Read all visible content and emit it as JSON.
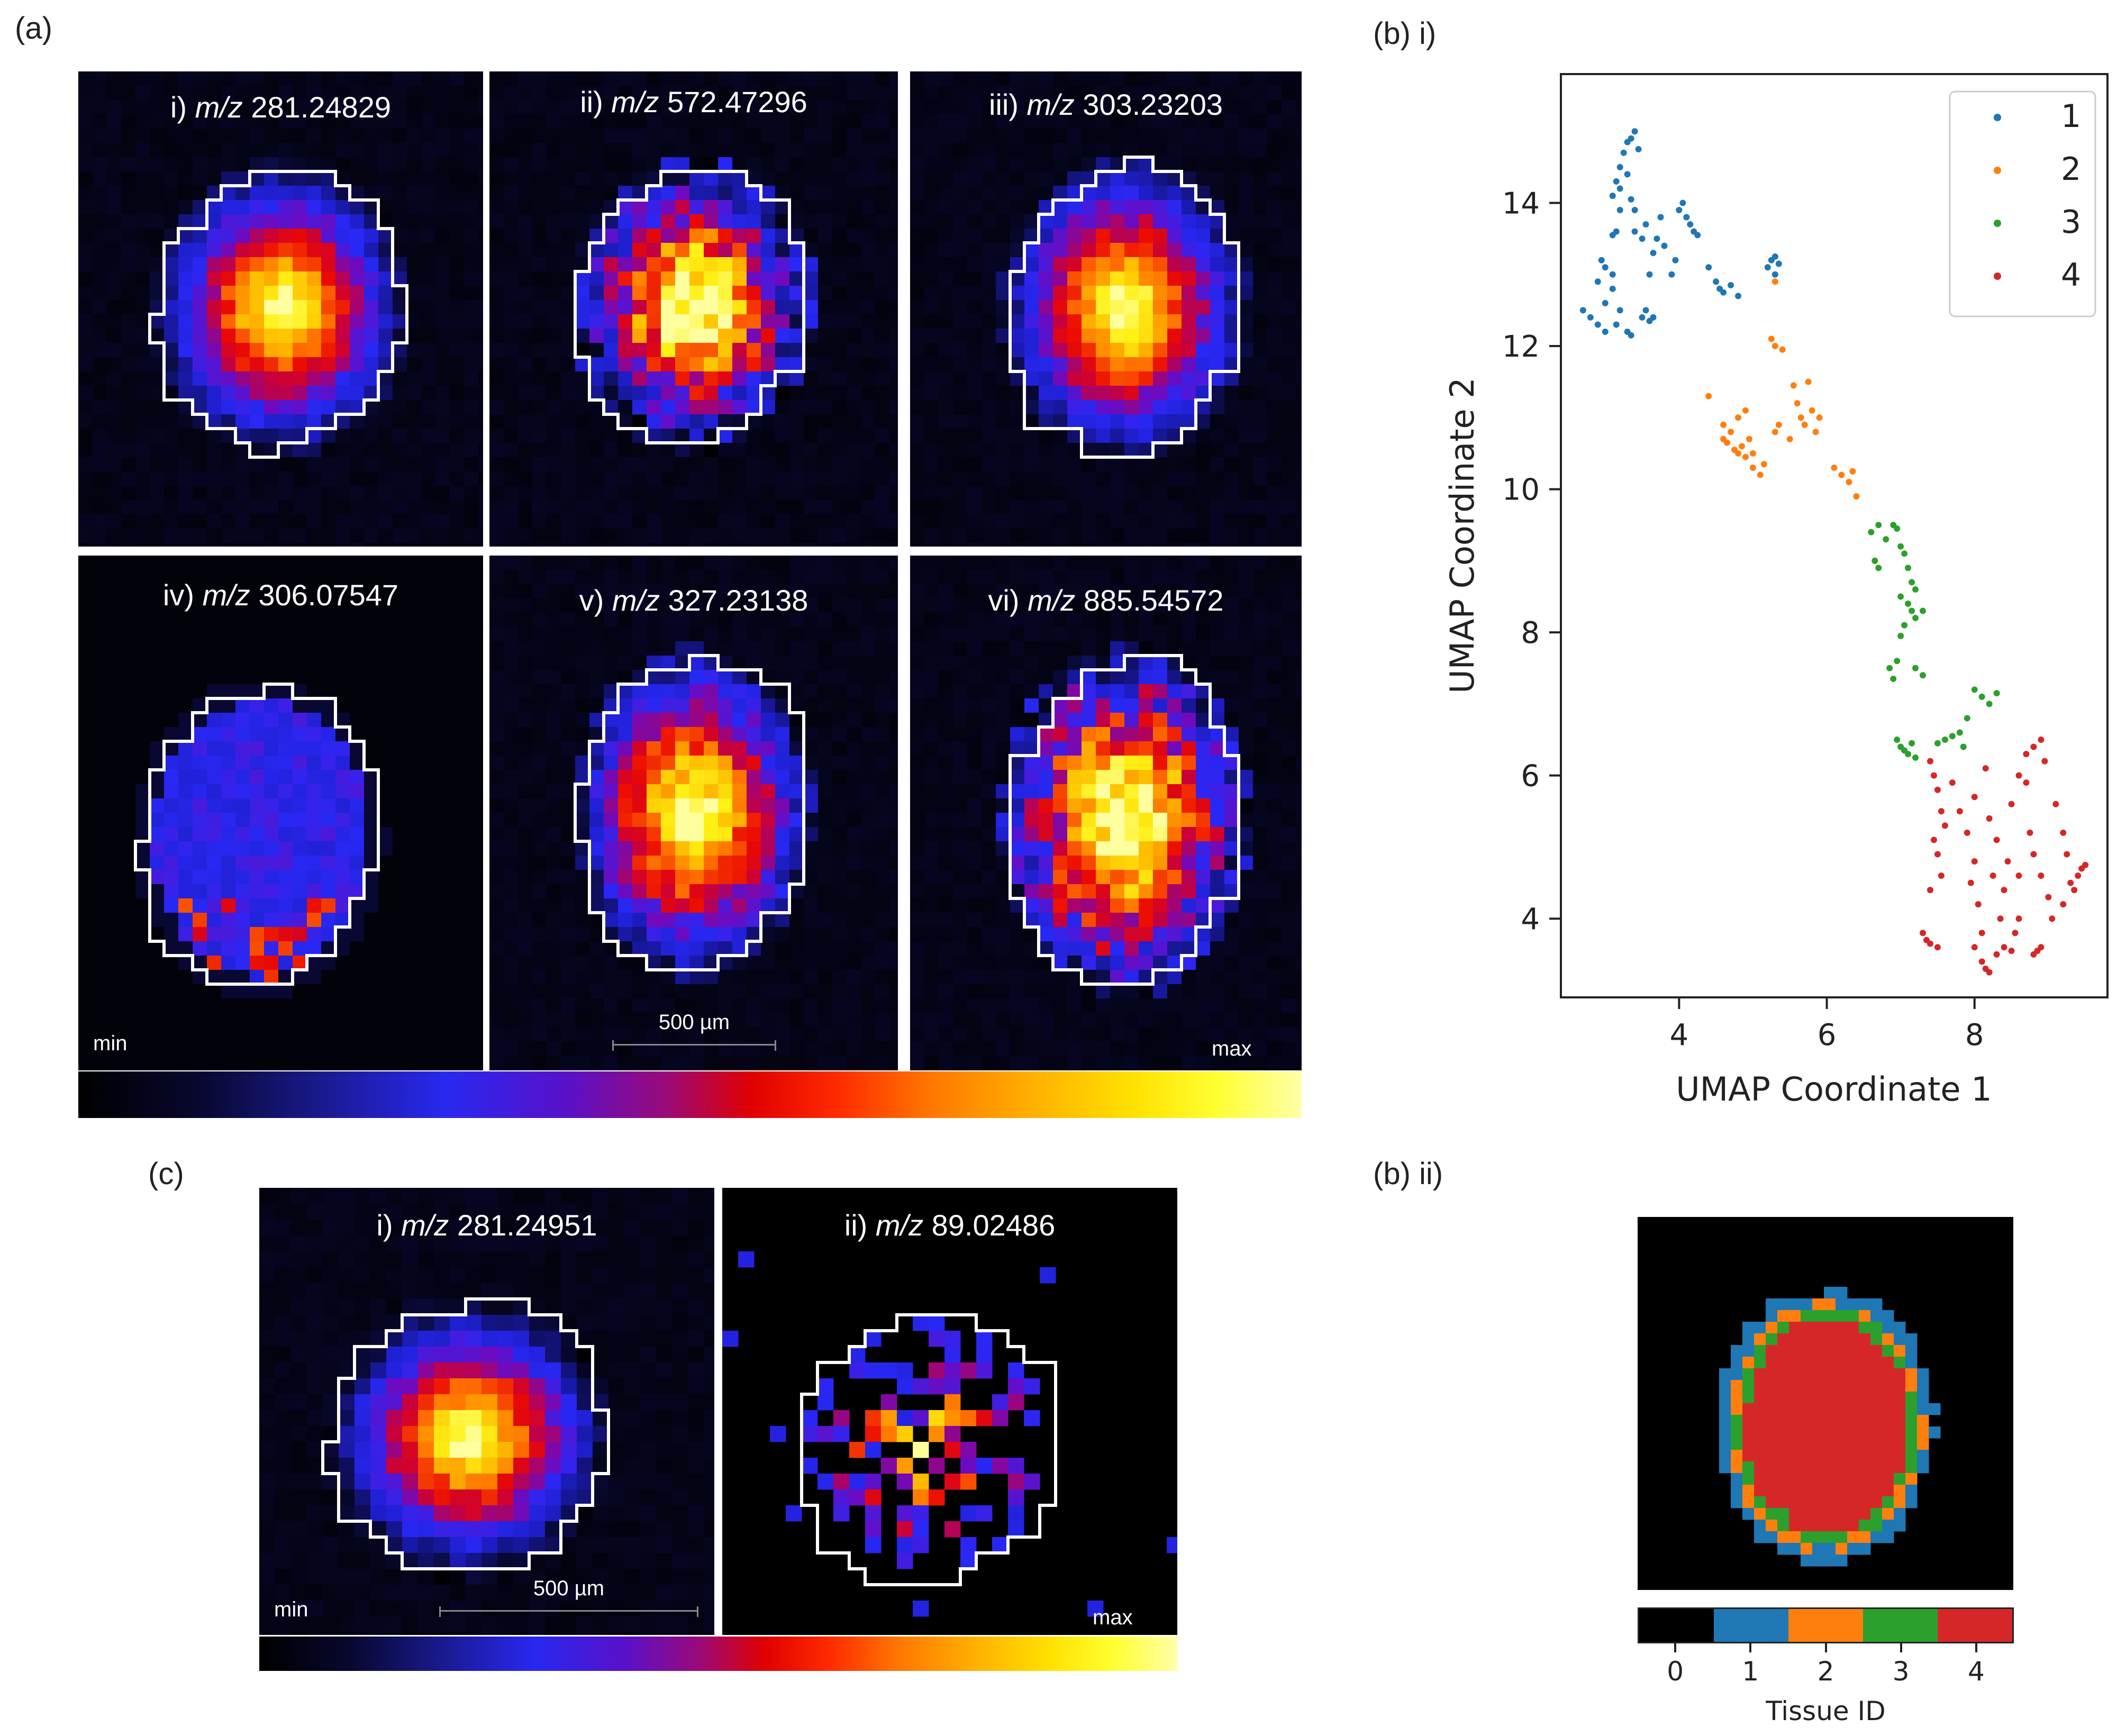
{
  "labels": {
    "a": "(a)",
    "b_i": "(b) i)",
    "b_ii": "(b) ii)",
    "c": "(c)"
  },
  "panel_a": {
    "tiles": [
      {
        "prefix": "i)",
        "mz": "m/z",
        "value": "281.24829"
      },
      {
        "prefix": "ii)",
        "mz": "m/z",
        "value": "572.47296"
      },
      {
        "prefix": "iii)",
        "mz": "m/z",
        "value": "303.23203"
      },
      {
        "prefix": "iv)",
        "mz": "m/z",
        "value": "306.07547"
      },
      {
        "prefix": "v)",
        "mz": "m/z",
        "value": "327.23138"
      },
      {
        "prefix": "vi)",
        "mz": "m/z",
        "value": "885.54572"
      }
    ],
    "min_label": "min",
    "max_label": "max",
    "scale_label": "500 µm"
  },
  "panel_c": {
    "tiles": [
      {
        "prefix": "i)",
        "mz": "m/z",
        "value": "281.24951"
      },
      {
        "prefix": "ii)",
        "mz": "m/z",
        "value": "89.02486"
      }
    ],
    "min_label": "min",
    "max_label": "max",
    "scale_label": "500 µm"
  },
  "chart_data": {
    "type": "scatter",
    "xlabel": "UMAP Coordinate 1",
    "ylabel": "UMAP Coordinate 2",
    "xlim": [
      2.4,
      9.8
    ],
    "ylim": [
      2.9,
      15.8
    ],
    "xticks": [
      4,
      6,
      8
    ],
    "yticks": [
      4,
      6,
      8,
      10,
      12,
      14
    ],
    "grid": false,
    "legend": "top-right",
    "series": [
      {
        "name": "1",
        "color": "#1f77b4",
        "points": [
          [
            2.7,
            12.5
          ],
          [
            2.8,
            12.4
          ],
          [
            2.9,
            12.3
          ],
          [
            3.0,
            12.6
          ],
          [
            2.9,
            12.9
          ],
          [
            3.0,
            13.1
          ],
          [
            2.95,
            13.2
          ],
          [
            3.1,
            12.8
          ],
          [
            3.0,
            12.2
          ],
          [
            3.15,
            12.3
          ],
          [
            3.2,
            12.5
          ],
          [
            3.3,
            12.2
          ],
          [
            3.35,
            12.15
          ],
          [
            3.1,
            13.0
          ],
          [
            3.15,
            13.6
          ],
          [
            3.2,
            13.9
          ],
          [
            3.1,
            14.1
          ],
          [
            3.15,
            14.3
          ],
          [
            3.2,
            14.5
          ],
          [
            3.25,
            14.7
          ],
          [
            3.3,
            14.85
          ],
          [
            3.35,
            14.9
          ],
          [
            3.4,
            15.0
          ],
          [
            3.45,
            14.75
          ],
          [
            3.2,
            14.2
          ],
          [
            3.3,
            14.4
          ],
          [
            3.35,
            14.05
          ],
          [
            3.4,
            13.9
          ],
          [
            3.5,
            12.4
          ],
          [
            3.55,
            12.5
          ],
          [
            3.6,
            12.35
          ],
          [
            3.65,
            12.4
          ],
          [
            3.6,
            13.0
          ],
          [
            3.65,
            13.3
          ],
          [
            3.7,
            13.5
          ],
          [
            3.75,
            13.8
          ],
          [
            3.8,
            13.4
          ],
          [
            3.5,
            13.5
          ],
          [
            3.9,
            13.0
          ],
          [
            3.95,
            13.2
          ],
          [
            4.0,
            13.9
          ],
          [
            4.05,
            14.0
          ],
          [
            4.1,
            13.8
          ],
          [
            4.15,
            13.7
          ],
          [
            4.2,
            13.6
          ],
          [
            4.25,
            13.55
          ],
          [
            4.4,
            13.1
          ],
          [
            4.5,
            12.9
          ],
          [
            4.55,
            12.8
          ],
          [
            4.6,
            12.75
          ],
          [
            4.7,
            12.85
          ],
          [
            4.8,
            12.7
          ],
          [
            5.2,
            13.1
          ],
          [
            5.25,
            13.2
          ],
          [
            5.3,
            13.25
          ],
          [
            5.35,
            13.15
          ],
          [
            5.3,
            13.0
          ],
          [
            3.1,
            13.55
          ],
          [
            3.4,
            13.6
          ],
          [
            3.55,
            13.7
          ]
        ]
      },
      {
        "name": "2",
        "color": "#ff7f0e",
        "points": [
          [
            5.3,
            12.9
          ],
          [
            5.25,
            12.1
          ],
          [
            5.3,
            12.0
          ],
          [
            5.4,
            11.95
          ],
          [
            4.4,
            11.3
          ],
          [
            4.6,
            10.9
          ],
          [
            4.7,
            10.8
          ],
          [
            4.65,
            10.65
          ],
          [
            4.75,
            10.55
          ],
          [
            4.8,
            10.5
          ],
          [
            4.85,
            10.6
          ],
          [
            4.9,
            10.45
          ],
          [
            4.95,
            10.7
          ],
          [
            5.0,
            10.5
          ],
          [
            4.8,
            11.0
          ],
          [
            4.9,
            11.1
          ],
          [
            5.0,
            10.3
          ],
          [
            5.1,
            10.2
          ],
          [
            5.15,
            10.35
          ],
          [
            5.3,
            10.8
          ],
          [
            5.35,
            10.9
          ],
          [
            5.5,
            10.7
          ],
          [
            5.6,
            11.2
          ],
          [
            5.65,
            11.0
          ],
          [
            5.7,
            10.9
          ],
          [
            5.75,
            11.5
          ],
          [
            5.8,
            11.1
          ],
          [
            5.85,
            10.8
          ],
          [
            5.9,
            11.0
          ],
          [
            6.1,
            10.3
          ],
          [
            6.2,
            10.2
          ],
          [
            6.3,
            10.1
          ],
          [
            6.35,
            10.25
          ],
          [
            6.4,
            9.9
          ],
          [
            5.55,
            11.45
          ],
          [
            4.6,
            10.7
          ]
        ]
      },
      {
        "name": "3",
        "color": "#2ca02c",
        "points": [
          [
            6.6,
            9.4
          ],
          [
            6.7,
            9.5
          ],
          [
            6.8,
            9.3
          ],
          [
            6.9,
            9.5
          ],
          [
            6.95,
            9.45
          ],
          [
            7.0,
            9.2
          ],
          [
            7.05,
            9.1
          ],
          [
            6.65,
            9.0
          ],
          [
            6.7,
            8.9
          ],
          [
            7.1,
            8.9
          ],
          [
            7.15,
            8.7
          ],
          [
            7.2,
            8.6
          ],
          [
            7.1,
            8.4
          ],
          [
            7.0,
            8.5
          ],
          [
            7.15,
            8.3
          ],
          [
            7.2,
            8.2
          ],
          [
            7.3,
            8.3
          ],
          [
            7.05,
            8.1
          ],
          [
            7.0,
            7.95
          ],
          [
            6.95,
            7.6
          ],
          [
            6.85,
            7.5
          ],
          [
            6.9,
            7.35
          ],
          [
            7.2,
            7.5
          ],
          [
            7.3,
            7.4
          ],
          [
            6.95,
            6.5
          ],
          [
            7.0,
            6.4
          ],
          [
            7.05,
            6.35
          ],
          [
            7.1,
            6.3
          ],
          [
            7.2,
            6.25
          ],
          [
            7.15,
            6.45
          ],
          [
            7.5,
            6.45
          ],
          [
            7.6,
            6.5
          ],
          [
            7.7,
            6.55
          ],
          [
            7.8,
            6.6
          ],
          [
            8.0,
            7.2
          ],
          [
            8.1,
            7.1
          ],
          [
            8.2,
            7.0
          ],
          [
            8.3,
            7.15
          ],
          [
            7.9,
            6.8
          ],
          [
            7.85,
            6.4
          ]
        ]
      },
      {
        "name": "4",
        "color": "#d62728",
        "points": [
          [
            7.4,
            6.2
          ],
          [
            7.45,
            6.0
          ],
          [
            7.5,
            5.8
          ],
          [
            7.55,
            5.5
          ],
          [
            7.6,
            5.3
          ],
          [
            7.45,
            5.1
          ],
          [
            7.5,
            4.9
          ],
          [
            7.55,
            4.6
          ],
          [
            7.4,
            4.4
          ],
          [
            7.3,
            3.8
          ],
          [
            7.35,
            3.7
          ],
          [
            7.4,
            3.65
          ],
          [
            7.5,
            3.6
          ],
          [
            7.7,
            5.9
          ],
          [
            7.8,
            5.5
          ],
          [
            7.9,
            5.2
          ],
          [
            8.0,
            4.8
          ],
          [
            7.95,
            4.5
          ],
          [
            8.05,
            4.2
          ],
          [
            8.1,
            3.8
          ],
          [
            8.0,
            3.6
          ],
          [
            8.1,
            3.4
          ],
          [
            8.15,
            3.3
          ],
          [
            8.2,
            3.25
          ],
          [
            8.3,
            3.5
          ],
          [
            8.4,
            3.6
          ],
          [
            8.5,
            3.55
          ],
          [
            8.35,
            4.0
          ],
          [
            8.4,
            4.4
          ],
          [
            8.45,
            4.8
          ],
          [
            8.3,
            5.1
          ],
          [
            8.2,
            5.4
          ],
          [
            8.5,
            5.6
          ],
          [
            8.6,
            6.0
          ],
          [
            8.7,
            6.3
          ],
          [
            8.8,
            6.4
          ],
          [
            8.9,
            6.5
          ],
          [
            8.95,
            6.2
          ],
          [
            8.7,
            5.9
          ],
          [
            8.75,
            5.2
          ],
          [
            8.8,
            4.9
          ],
          [
            8.9,
            4.6
          ],
          [
            9.0,
            4.3
          ],
          [
            9.05,
            4.0
          ],
          [
            8.9,
            3.6
          ],
          [
            8.8,
            3.5
          ],
          [
            8.85,
            3.55
          ],
          [
            9.1,
            5.6
          ],
          [
            9.2,
            5.2
          ],
          [
            9.3,
            4.5
          ],
          [
            9.4,
            4.6
          ],
          [
            9.45,
            4.7
          ],
          [
            9.5,
            4.75
          ],
          [
            9.35,
            4.4
          ],
          [
            9.2,
            4.2
          ],
          [
            8.6,
            4.0
          ],
          [
            8.55,
            3.8
          ],
          [
            8.25,
            4.6
          ],
          [
            8.6,
            4.6
          ],
          [
            8.15,
            6.1
          ],
          [
            8.0,
            5.7
          ],
          [
            9.25,
            4.9
          ]
        ]
      }
    ]
  },
  "panel_b_ii": {
    "colorbar_ticks": [
      "0",
      "1",
      "2",
      "3",
      "4"
    ],
    "colorbar_label": "Tissue ID",
    "colors": [
      "#000000",
      "#1f77b4",
      "#ff7f0e",
      "#2ca02c",
      "#d62728"
    ]
  }
}
